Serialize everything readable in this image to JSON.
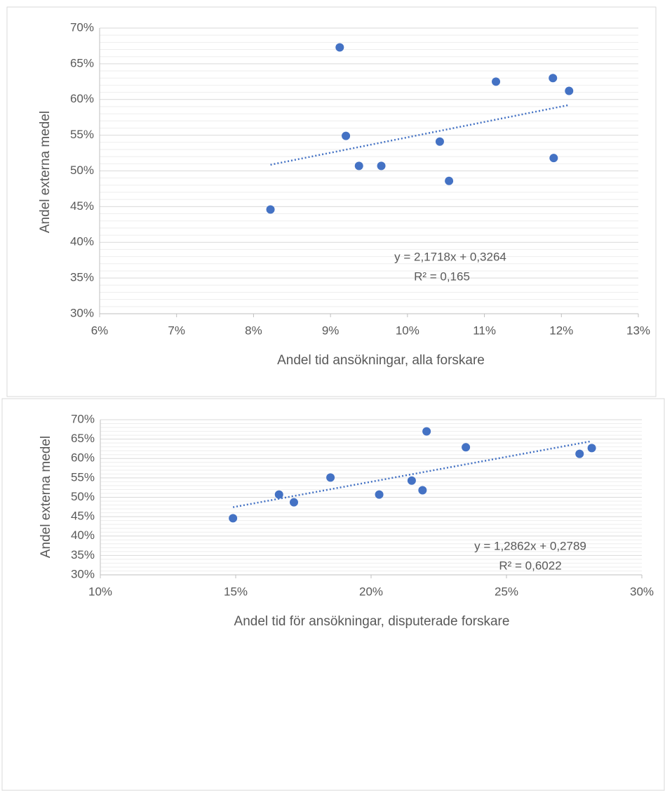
{
  "chart_data": [
    {
      "type": "scatter",
      "x_label": "Andel tid ansökningar, alla forskare",
      "y_label": "Andel externa medel",
      "color": "#4472c4",
      "x": [
        8.22,
        9.12,
        9.2,
        9.37,
        9.66,
        10.42,
        10.54,
        11.15,
        11.89,
        11.9,
        12.1
      ],
      "values": [
        44.6,
        67.3,
        54.9,
        50.7,
        50.7,
        54.1,
        48.6,
        62.5,
        63.0,
        51.8,
        61.2
      ],
      "xlim": [
        6,
        13
      ],
      "xticks": [
        {
          "value": 6,
          "label": "6%"
        },
        {
          "value": 7,
          "label": "7%"
        },
        {
          "value": 8,
          "label": "8%"
        },
        {
          "value": 9,
          "label": "9%"
        },
        {
          "value": 10,
          "label": "10%"
        },
        {
          "value": 11,
          "label": "11%"
        },
        {
          "value": 12,
          "label": "12%"
        },
        {
          "value": 13,
          "label": "13%"
        }
      ],
      "ylim": [
        30,
        70
      ],
      "yticks": [
        {
          "value": 30,
          "label": "30%"
        },
        {
          "value": 35,
          "label": "35%"
        },
        {
          "value": 40,
          "label": "40%"
        },
        {
          "value": 45,
          "label": "45%"
        },
        {
          "value": 50,
          "label": "50%"
        },
        {
          "value": 55,
          "label": "55%"
        },
        {
          "value": 60,
          "label": "60%"
        },
        {
          "value": 65,
          "label": "65%"
        },
        {
          "value": 70,
          "label": "70%"
        }
      ],
      "grid": true,
      "minor_grid": true,
      "trendline": "linear",
      "annotations": [
        "y = 2,1718x + 0,3264",
        "R² = 0,165"
      ]
    },
    {
      "type": "scatter",
      "x_label": "Andel tid för ansökningar, disputerade forskare",
      "y_label": "Andel externa medel",
      "color": "#4472c4",
      "x": [
        14.9,
        16.6,
        17.15,
        18.5,
        20.3,
        21.5,
        21.9,
        22.05,
        23.5,
        27.7,
        28.15
      ],
      "values": [
        44.6,
        50.7,
        48.7,
        55.1,
        50.7,
        54.3,
        51.8,
        67.0,
        62.9,
        61.2,
        62.7
      ],
      "xlim": [
        10,
        30
      ],
      "xticks": [
        {
          "value": 10,
          "label": "10%"
        },
        {
          "value": 15,
          "label": "15%"
        },
        {
          "value": 20,
          "label": "20%"
        },
        {
          "value": 25,
          "label": "25%"
        },
        {
          "value": 30,
          "label": "30%"
        }
      ],
      "ylim": [
        30,
        70
      ],
      "yticks": [
        {
          "value": 30,
          "label": "30%"
        },
        {
          "value": 35,
          "label": "35%"
        },
        {
          "value": 40,
          "label": "40%"
        },
        {
          "value": 45,
          "label": "45%"
        },
        {
          "value": 50,
          "label": "50%"
        },
        {
          "value": 55,
          "label": "55%"
        },
        {
          "value": 60,
          "label": "60%"
        },
        {
          "value": 65,
          "label": "65%"
        },
        {
          "value": 70,
          "label": "70%"
        }
      ],
      "grid": true,
      "minor_grid": true,
      "trendline": "linear",
      "annotations": [
        "y = 1,2862x + 0,2789",
        "R² = 0,6022"
      ]
    }
  ]
}
